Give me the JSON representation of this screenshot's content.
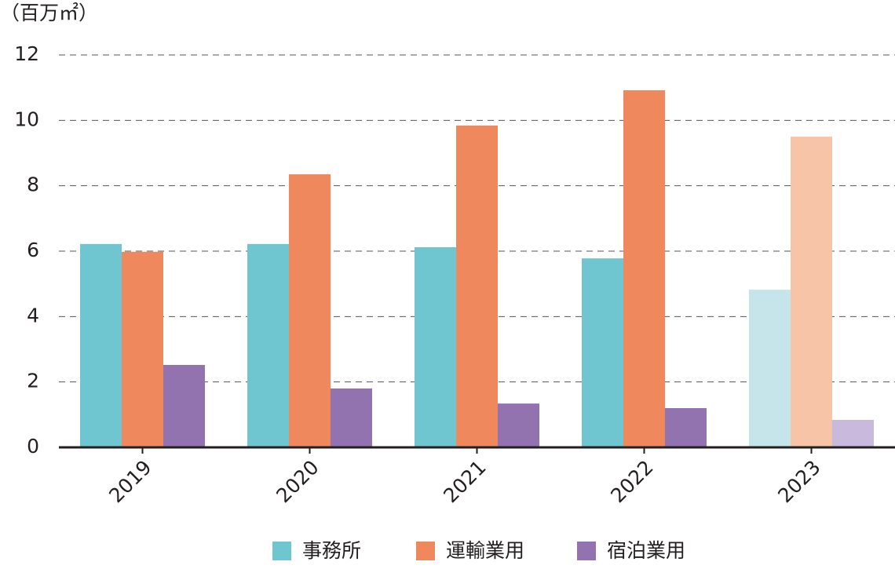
{
  "chart_data": {
    "type": "bar",
    "y_label": "（百万㎡）",
    "categories": [
      "2019",
      "2020",
      "2021",
      "2022",
      "2023"
    ],
    "series": [
      {
        "name": "事務所",
        "color": "#6fc6d0",
        "colors": [
          "#6fc6d0",
          "#6fc6d0",
          "#6fc6d0",
          "#6fc6d0",
          "#c5e5ea"
        ],
        "values": [
          6.22,
          6.22,
          6.12,
          5.78,
          4.82
        ]
      },
      {
        "name": "運輸業用",
        "color": "#f0885e",
        "colors": [
          "#f0885e",
          "#f0885e",
          "#f0885e",
          "#f0885e",
          "#f7c4a8"
        ],
        "values": [
          5.98,
          8.35,
          9.84,
          10.92,
          9.5
        ]
      },
      {
        "name": "宿泊業用",
        "color": "#9273b0",
        "colors": [
          "#9273b0",
          "#9273b0",
          "#9273b0",
          "#9273b0",
          "#c9b9dc"
        ],
        "values": [
          2.52,
          1.8,
          1.34,
          1.2,
          0.84
        ]
      }
    ],
    "ylim": [
      0,
      12
    ],
    "yticks": [
      0,
      2,
      4,
      6,
      8,
      10,
      12
    ],
    "grid": true
  }
}
